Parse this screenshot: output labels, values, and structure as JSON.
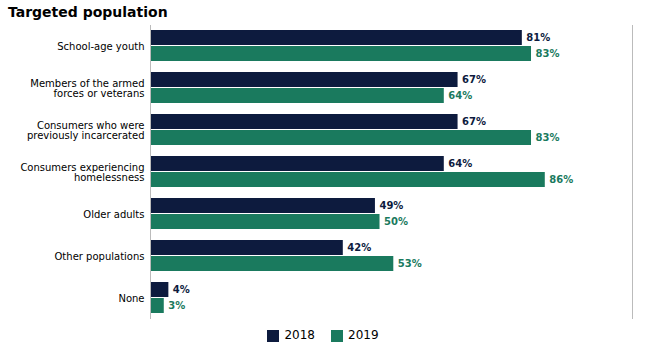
{
  "chart_data": {
    "type": "bar",
    "orientation": "horizontal",
    "title": "Targeted population",
    "categories": [
      "School-age youth",
      "Members of the armed\nforces or veterans",
      "Consumers who were\npreviously incarcerated",
      "Consumers experiencing\nhomelessness",
      "Older adults",
      "Other populations",
      "None"
    ],
    "series": [
      {
        "name": "2018",
        "color": "#0d1b3e",
        "values": [
          81,
          67,
          67,
          64,
          49,
          42,
          4
        ],
        "value_labels": [
          "81%",
          "67%",
          "67%",
          "64%",
          "49%",
          "42%",
          "4%"
        ]
      },
      {
        "name": "2019",
        "color": "#1a7a5e",
        "values": [
          83,
          64,
          83,
          86,
          50,
          53,
          3
        ],
        "value_labels": [
          "83%",
          "64%",
          "83%",
          "86%",
          "50%",
          "53%",
          "3%"
        ]
      }
    ],
    "xlim": [
      0,
      105
    ],
    "xticks": [],
    "tick_labels": "y",
    "data_labels": true,
    "legend": "bottom",
    "grid": false
  }
}
